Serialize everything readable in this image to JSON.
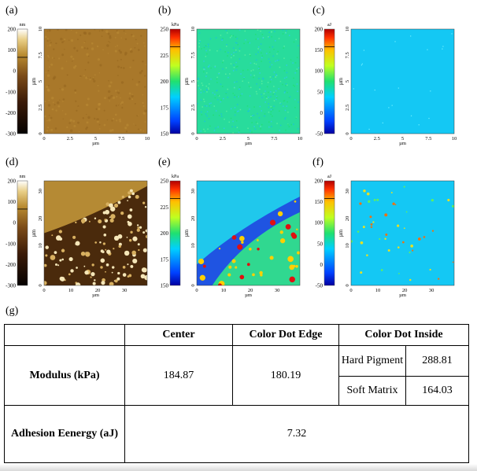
{
  "panels": [
    {
      "label": "(a)",
      "cbar_unit": "nm",
      "cbar_ticks": [
        "200",
        "100",
        "0",
        "-100",
        "-200",
        "-300"
      ],
      "y_unit": "µm",
      "y_ticks": [
        "10",
        "7.5",
        "5",
        "2.5",
        "0"
      ],
      "x_ticks": [
        "0",
        "2.5",
        "5",
        "7.5",
        "10"
      ],
      "x_unit": "µm",
      "map": "topo-flat",
      "palette": "afm-gold"
    },
    {
      "label": "(b)",
      "cbar_unit": "kPa",
      "cbar_ticks": [
        "250",
        "225",
        "200",
        "175",
        "150"
      ],
      "y_unit": "µm",
      "y_ticks": [
        "10",
        "7.5",
        "5",
        "2.5",
        "0"
      ],
      "x_ticks": [
        "0",
        "2.5",
        "5",
        "7.5",
        "10"
      ],
      "x_unit": "µm",
      "map": "modulus-flat",
      "palette": "jet"
    },
    {
      "label": "(c)",
      "cbar_unit": "aJ",
      "cbar_ticks": [
        "200",
        "150",
        "100",
        "50",
        "0",
        "-50"
      ],
      "y_unit": "µm",
      "y_ticks": [
        "10",
        "7.5",
        "5",
        "2.5",
        "0"
      ],
      "x_ticks": [
        "0",
        "2.5",
        "5",
        "7.5",
        "10"
      ],
      "x_unit": "µm",
      "map": "adhesion-flat",
      "palette": "jet"
    },
    {
      "label": "(d)",
      "cbar_unit": "nm",
      "cbar_ticks": [
        "200",
        "100",
        "0",
        "-100",
        "-200",
        "-300"
      ],
      "y_unit": "µm",
      "y_ticks": [
        "30",
        "20",
        "10",
        "0"
      ],
      "x_ticks": [
        "0",
        "10",
        "20",
        "30"
      ],
      "x_unit": "µm",
      "map": "topo-dots",
      "palette": "afm-gold"
    },
    {
      "label": "(e)",
      "cbar_unit": "kPa",
      "cbar_ticks": [
        "250",
        "225",
        "200",
        "175",
        "150"
      ],
      "y_unit": "µm",
      "y_ticks": [
        "30",
        "20",
        "10",
        "0"
      ],
      "x_ticks": [
        "0",
        "10",
        "20",
        "30"
      ],
      "x_unit": "µm",
      "map": "modulus-dots",
      "palette": "jet"
    },
    {
      "label": "(f)",
      "cbar_unit": "aJ",
      "cbar_ticks": [
        "200",
        "150",
        "100",
        "50",
        "0",
        "-50"
      ],
      "y_unit": "µm",
      "y_ticks": [
        "30",
        "20",
        "10",
        "0"
      ],
      "x_ticks": [
        "0",
        "10",
        "20",
        "30"
      ],
      "x_unit": "µm",
      "map": "adhesion-dots",
      "palette": "jet"
    }
  ],
  "table_label": "(g)",
  "table": {
    "col_center": "Center",
    "col_edge": "Color Dot Edge",
    "col_inside": "Color Dot Inside",
    "row_modulus": "Modulus (kPa)",
    "row_adhesion": "Adhesion Eenergy (aJ)",
    "modulus_center": "184.87",
    "modulus_edge": "180.19",
    "hard_pigment": "Hard Pigment",
    "hard_value": "288.81",
    "soft_matrix": "Soft Matrix",
    "soft_value": "164.03",
    "adhesion_value": "7.32"
  }
}
